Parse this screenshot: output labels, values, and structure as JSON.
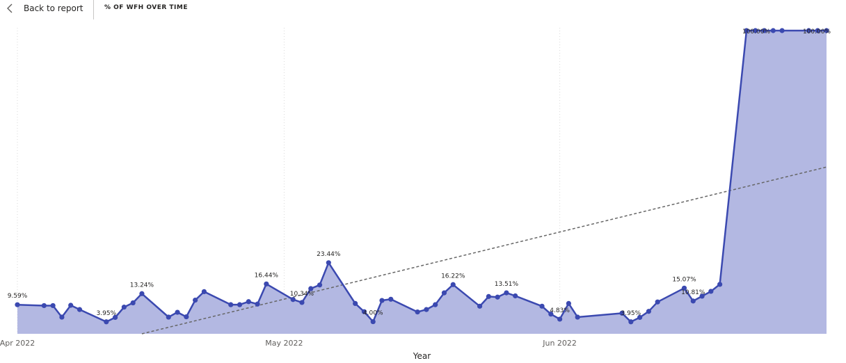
{
  "header": {
    "back_label": "Back to report",
    "title": "% OF WFH OVER TIME"
  },
  "colors": {
    "line": "#3b49b0",
    "area": "#b3b8e2",
    "trend": "#666666",
    "grid": "#d9d9d9"
  },
  "chart_data": {
    "type": "area",
    "title": "% OF WFH OVER TIME",
    "xlabel": "Year",
    "ylabel": "",
    "x_start": "2022-04-01",
    "x_end": "2022-07-01",
    "ylim": [
      0,
      100
    ],
    "xticks": [
      {
        "date": "2022-04-01",
        "label": "Apr 2022"
      },
      {
        "date": "2022-05-01",
        "label": "May 2022"
      },
      {
        "date": "2022-06-01",
        "label": "Jun 2022"
      }
    ],
    "series": [
      {
        "name": "% of WFH",
        "points": [
          {
            "date": "2022-04-01",
            "value": 9.59,
            "label": "9.59%"
          },
          {
            "date": "2022-04-04",
            "value": 9.3
          },
          {
            "date": "2022-04-05",
            "value": 9.3
          },
          {
            "date": "2022-04-06",
            "value": 5.5
          },
          {
            "date": "2022-04-07",
            "value": 9.4
          },
          {
            "date": "2022-04-08",
            "value": 8.0
          },
          {
            "date": "2022-04-11",
            "value": 3.95,
            "label": "3.95%"
          },
          {
            "date": "2022-04-12",
            "value": 5.4
          },
          {
            "date": "2022-04-13",
            "value": 8.8
          },
          {
            "date": "2022-04-14",
            "value": 10.2
          },
          {
            "date": "2022-04-15",
            "value": 13.24,
            "label": "13.24%"
          },
          {
            "date": "2022-04-18",
            "value": 5.5
          },
          {
            "date": "2022-04-19",
            "value": 7.1
          },
          {
            "date": "2022-04-20",
            "value": 5.6
          },
          {
            "date": "2022-04-21",
            "value": 11.1
          },
          {
            "date": "2022-04-22",
            "value": 13.9
          },
          {
            "date": "2022-04-25",
            "value": 9.6
          },
          {
            "date": "2022-04-26",
            "value": 9.6
          },
          {
            "date": "2022-04-27",
            "value": 10.6
          },
          {
            "date": "2022-04-28",
            "value": 9.8
          },
          {
            "date": "2022-04-29",
            "value": 16.44,
            "label": "16.44%"
          },
          {
            "date": "2022-05-02",
            "value": 11.3
          },
          {
            "date": "2022-05-03",
            "value": 10.34,
            "label": "10.34%"
          },
          {
            "date": "2022-05-04",
            "value": 14.9
          },
          {
            "date": "2022-05-05",
            "value": 16.1
          },
          {
            "date": "2022-05-06",
            "value": 23.44,
            "label": "23.44%"
          },
          {
            "date": "2022-05-09",
            "value": 10.0
          },
          {
            "date": "2022-05-10",
            "value": 7.3
          },
          {
            "date": "2022-05-11",
            "value": 4.0,
            "label": "4.00%"
          },
          {
            "date": "2022-05-12",
            "value": 11.0
          },
          {
            "date": "2022-05-13",
            "value": 11.4
          },
          {
            "date": "2022-05-16",
            "value": 7.2
          },
          {
            "date": "2022-05-17",
            "value": 8.0
          },
          {
            "date": "2022-05-18",
            "value": 9.6
          },
          {
            "date": "2022-05-19",
            "value": 13.5
          },
          {
            "date": "2022-05-20",
            "value": 16.22,
            "label": "16.22%"
          },
          {
            "date": "2022-05-23",
            "value": 9.1
          },
          {
            "date": "2022-05-24",
            "value": 12.3
          },
          {
            "date": "2022-05-25",
            "value": 12.1
          },
          {
            "date": "2022-05-26",
            "value": 13.51,
            "label": "13.51%"
          },
          {
            "date": "2022-05-27",
            "value": 12.5
          },
          {
            "date": "2022-05-30",
            "value": 9.1
          },
          {
            "date": "2022-05-31",
            "value": 6.5
          },
          {
            "date": "2022-06-01",
            "value": 4.83,
            "label": "4.83%"
          },
          {
            "date": "2022-06-02",
            "value": 10.0
          },
          {
            "date": "2022-06-03",
            "value": 5.5
          },
          {
            "date": "2022-06-08",
            "value": 6.8
          },
          {
            "date": "2022-06-09",
            "value": 3.95,
            "label": "3.95%"
          },
          {
            "date": "2022-06-10",
            "value": 5.4
          },
          {
            "date": "2022-06-11",
            "value": 7.4
          },
          {
            "date": "2022-06-12",
            "value": 10.5
          },
          {
            "date": "2022-06-15",
            "value": 15.07,
            "label": "15.07%"
          },
          {
            "date": "2022-06-16",
            "value": 10.81,
            "label": "10.81%"
          },
          {
            "date": "2022-06-17",
            "value": 12.4
          },
          {
            "date": "2022-06-18",
            "value": 14.0
          },
          {
            "date": "2022-06-19",
            "value": 16.3
          },
          {
            "date": "2022-06-22",
            "value": 100,
            "label": "100.00%"
          },
          {
            "date": "2022-06-23",
            "value": 100
          },
          {
            "date": "2022-06-24",
            "value": 100
          },
          {
            "date": "2022-06-25",
            "value": 100
          },
          {
            "date": "2022-06-26",
            "value": 100
          },
          {
            "date": "2022-06-29",
            "value": 100
          },
          {
            "date": "2022-06-30",
            "value": 100
          },
          {
            "date": "2022-07-01",
            "value": 100,
            "label": "100.00%"
          }
        ]
      }
    ],
    "trendline": {
      "style": "dashed",
      "start": {
        "date": "2022-04-15",
        "value": 0
      },
      "end": {
        "date": "2022-07-01",
        "value": 55
      }
    }
  }
}
